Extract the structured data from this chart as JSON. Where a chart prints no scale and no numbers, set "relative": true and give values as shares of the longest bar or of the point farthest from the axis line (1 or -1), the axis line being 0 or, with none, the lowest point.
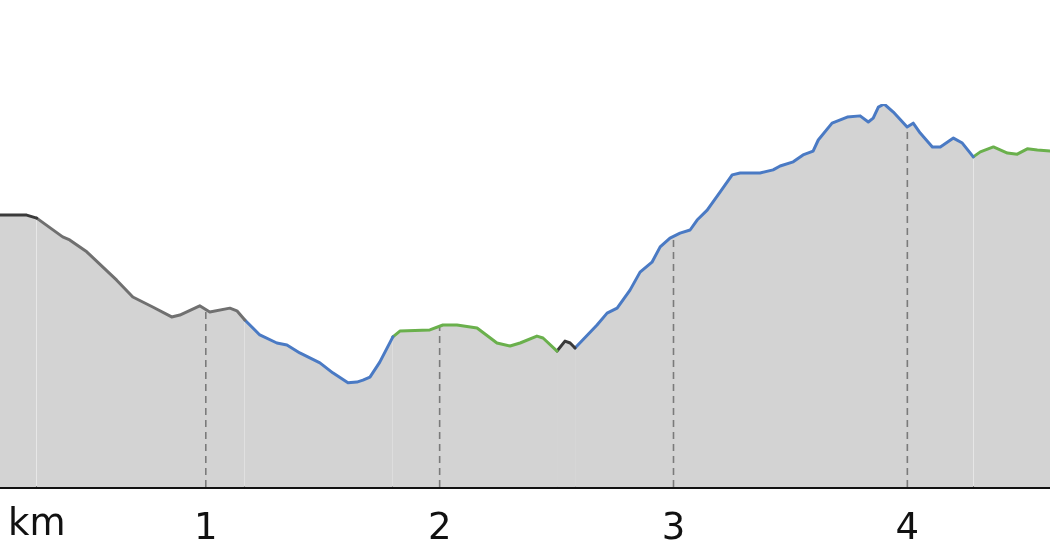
{
  "chart_data": {
    "type": "area",
    "xlabel": "km",
    "relative": true,
    "xlim": [
      0.12,
      4.61
    ],
    "xticks": [
      1,
      2,
      3,
      4
    ],
    "grid": "x",
    "tick_labels": "x",
    "marker": "none",
    "series": [
      {
        "color": "#3a3a3a",
        "x": [
          0.12,
          0.234,
          0.277
        ],
        "values": [
          0.71,
          0.71,
          0.702
        ]
      },
      {
        "color": "#707070",
        "x": [
          0.277,
          0.388,
          0.418,
          0.491,
          0.619,
          0.688,
          0.773,
          0.854,
          0.889,
          0.974,
          1.017,
          1.103,
          1.133,
          1.167
        ],
        "values": [
          0.702,
          0.653,
          0.645,
          0.614,
          0.54,
          0.496,
          0.47,
          0.444,
          0.449,
          0.473,
          0.457,
          0.467,
          0.46,
          0.436
        ]
      },
      {
        "color": "#4a7ac4",
        "x": [
          1.167,
          1.231,
          1.304,
          1.347,
          1.402,
          1.488,
          1.543,
          1.608,
          1.646,
          1.672,
          1.702,
          1.744,
          1.8
        ],
        "values": [
          0.436,
          0.397,
          0.376,
          0.371,
          0.35,
          0.324,
          0.298,
          0.272,
          0.274,
          0.279,
          0.287,
          0.326,
          0.392
        ]
      },
      {
        "color": "#6ab04c",
        "x": [
          1.8,
          1.83,
          1.958,
          2.014,
          2.074,
          2.16,
          2.245,
          2.301,
          2.344,
          2.416,
          2.442,
          2.502
        ],
        "values": [
          0.392,
          0.407,
          0.41,
          0.423,
          0.423,
          0.415,
          0.376,
          0.368,
          0.376,
          0.394,
          0.389,
          0.355
        ]
      },
      {
        "color": "#3a3a3a",
        "x": [
          2.502,
          2.536,
          2.558,
          2.579
        ],
        "values": [
          0.355,
          0.381,
          0.376,
          0.363
        ]
      },
      {
        "color": "#4a7ac4",
        "x": [
          2.579,
          2.673,
          2.716,
          2.759,
          2.814,
          2.857,
          2.908,
          2.943,
          2.985,
          3.028,
          3.071,
          3.101,
          3.144,
          3.199,
          3.251,
          3.285,
          3.37,
          3.426,
          3.456,
          3.512,
          3.554,
          3.597,
          3.619,
          3.678,
          3.743,
          3.798,
          3.833,
          3.854,
          3.876,
          3.901,
          3.94,
          3.999,
          4.025,
          4.055,
          4.107,
          4.141,
          4.197,
          4.235,
          4.282
        ],
        "values": [
          0.363,
          0.423,
          0.454,
          0.467,
          0.514,
          0.561,
          0.587,
          0.627,
          0.65,
          0.663,
          0.671,
          0.697,
          0.723,
          0.77,
          0.815,
          0.82,
          0.82,
          0.828,
          0.838,
          0.849,
          0.867,
          0.877,
          0.906,
          0.95,
          0.966,
          0.969,
          0.953,
          0.963,
          0.992,
          1,
          0.979,
          0.94,
          0.95,
          0.924,
          0.888,
          0.888,
          0.911,
          0.898,
          0.862
        ]
      },
      {
        "color": "#6ab04c",
        "x": [
          4.282,
          4.312,
          4.368,
          4.428,
          4.47,
          4.513,
          4.556,
          4.61
        ],
        "values": [
          0.862,
          0.875,
          0.888,
          0.872,
          0.869,
          0.883,
          0.88,
          0.877
        ]
      }
    ]
  }
}
